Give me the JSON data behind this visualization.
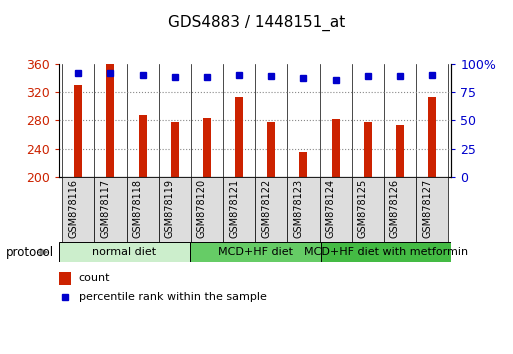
{
  "title": "GDS4883 / 1448151_at",
  "samples": [
    "GSM878116",
    "GSM878117",
    "GSM878118",
    "GSM878119",
    "GSM878120",
    "GSM878121",
    "GSM878122",
    "GSM878123",
    "GSM878124",
    "GSM878125",
    "GSM878126",
    "GSM878127"
  ],
  "counts": [
    330,
    360,
    287,
    277,
    283,
    313,
    277,
    236,
    282,
    278,
    273,
    313
  ],
  "percentiles": [
    92,
    92,
    90,
    88,
    88,
    90,
    89,
    87,
    86,
    89,
    89,
    90
  ],
  "bar_color": "#cc2200",
  "dot_color": "#0000cc",
  "ylim_left": [
    200,
    360
  ],
  "ylim_right": [
    0,
    100
  ],
  "yticks_left": [
    200,
    240,
    280,
    320,
    360
  ],
  "yticks_right": [
    0,
    25,
    50,
    75,
    100
  ],
  "groups": [
    {
      "label": "normal diet",
      "start": 0,
      "end": 4,
      "color": "#cceecc"
    },
    {
      "label": "MCD+HF diet",
      "start": 4,
      "end": 8,
      "color": "#66cc66"
    },
    {
      "label": "MCD+HF diet with metformin",
      "start": 8,
      "end": 12,
      "color": "#44bb44"
    }
  ],
  "protocol_label": "protocol",
  "legend_count_label": "count",
  "legend_percentile_label": "percentile rank within the sample",
  "title_fontsize": 11,
  "axis_label_color_left": "#cc2200",
  "axis_label_color_right": "#0000cc",
  "background_color": "#ffffff",
  "bar_width": 0.25,
  "grid_color": "#888888",
  "tick_label_fontsize": 7,
  "group_label_fontsize": 8,
  "legend_fontsize": 8
}
